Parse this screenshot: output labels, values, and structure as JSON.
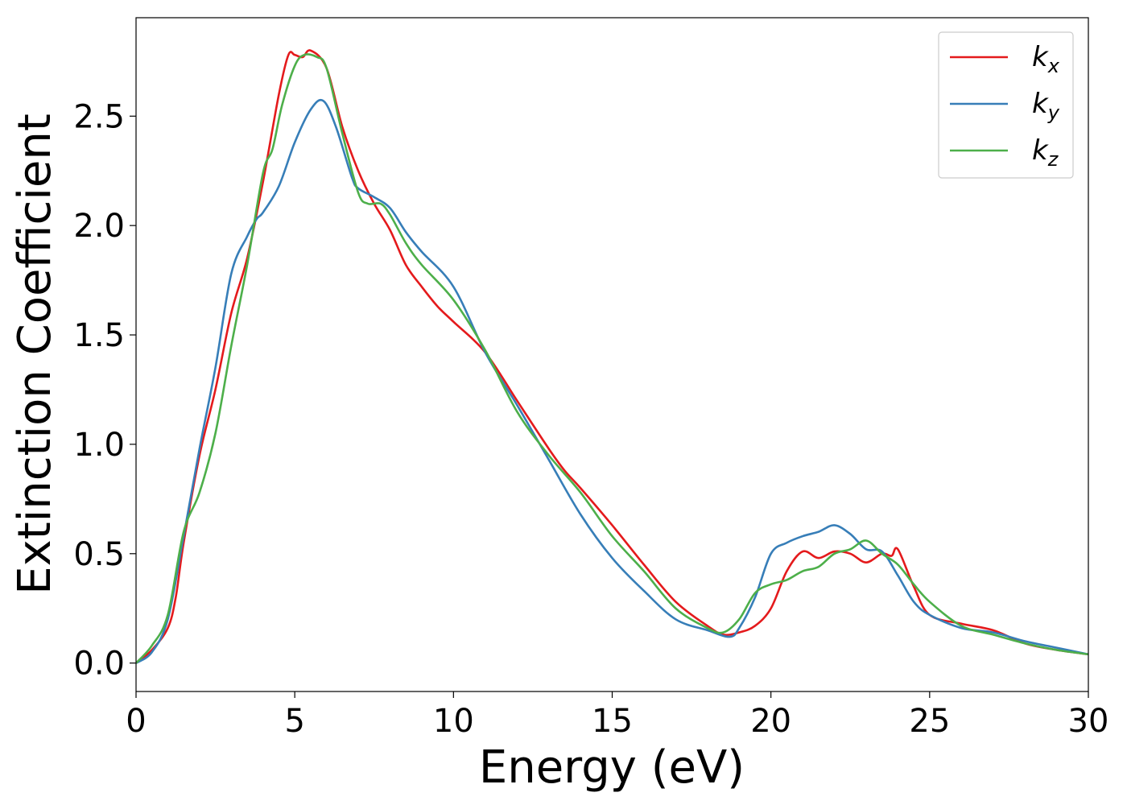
{
  "chart_data": {
    "type": "line",
    "title": "",
    "xlabel": "Energy (eV)",
    "ylabel": "Extinction Coefficient",
    "xlim": [
      0,
      30
    ],
    "ylim": [
      -0.13,
      2.95
    ],
    "xticks": [
      0,
      5,
      10,
      15,
      20,
      25,
      30
    ],
    "xtick_labels": [
      "0",
      "5",
      "10",
      "15",
      "20",
      "25",
      "30"
    ],
    "yticks": [
      0.0,
      0.5,
      1.0,
      1.5,
      2.0,
      2.5
    ],
    "ytick_labels": [
      "0.0",
      "0.5",
      "1.0",
      "1.5",
      "2.0",
      "2.5"
    ],
    "grid": false,
    "legend_position": "top-right",
    "series": [
      {
        "name": "kx",
        "label_main": "k",
        "label_sub": "x",
        "color": "#e41a1c",
        "x": [
          0,
          0.5,
          1,
          1.25,
          1.5,
          2,
          2.5,
          3,
          3.5,
          4,
          4.5,
          4.8,
          5,
          5.25,
          5.5,
          6,
          6.5,
          7,
          7.5,
          8,
          8.5,
          9,
          9.5,
          10,
          11,
          12,
          13,
          13.5,
          14,
          15,
          16,
          17,
          18,
          18.5,
          19,
          19.5,
          20,
          20.5,
          21,
          21.5,
          22,
          22.5,
          23,
          23.5,
          23.8,
          24,
          24.5,
          25,
          26,
          27,
          28,
          29,
          30
        ],
        "y": [
          0.0,
          0.06,
          0.16,
          0.3,
          0.55,
          0.95,
          1.25,
          1.6,
          1.85,
          2.2,
          2.6,
          2.78,
          2.78,
          2.77,
          2.8,
          2.72,
          2.45,
          2.25,
          2.1,
          1.98,
          1.82,
          1.72,
          1.63,
          1.56,
          1.42,
          1.2,
          0.98,
          0.88,
          0.8,
          0.63,
          0.45,
          0.28,
          0.17,
          0.13,
          0.14,
          0.17,
          0.25,
          0.42,
          0.51,
          0.48,
          0.51,
          0.5,
          0.46,
          0.5,
          0.49,
          0.52,
          0.35,
          0.22,
          0.18,
          0.15,
          0.09,
          0.06,
          0.04
        ]
      },
      {
        "name": "ky",
        "label_main": "k",
        "label_sub": "y",
        "color": "#377eb8",
        "x": [
          0,
          0.5,
          1,
          1.5,
          2,
          2.5,
          3,
          3.5,
          3.8,
          4,
          4.5,
          5,
          5.5,
          5.9,
          6.3,
          6.8,
          7,
          7.5,
          8,
          8.5,
          9,
          10,
          11,
          12,
          13,
          14,
          15,
          16,
          17,
          18,
          18.7,
          19,
          19.5,
          20,
          20.5,
          21,
          21.5,
          22,
          22.5,
          23,
          23.5,
          24,
          24.5,
          25,
          26,
          27,
          28,
          29,
          30
        ],
        "y": [
          0.0,
          0.05,
          0.2,
          0.58,
          0.98,
          1.35,
          1.78,
          1.95,
          2.03,
          2.06,
          2.18,
          2.38,
          2.53,
          2.57,
          2.45,
          2.22,
          2.17,
          2.13,
          2.08,
          1.97,
          1.88,
          1.72,
          1.42,
          1.18,
          0.93,
          0.68,
          0.48,
          0.33,
          0.2,
          0.15,
          0.12,
          0.16,
          0.3,
          0.5,
          0.55,
          0.58,
          0.6,
          0.63,
          0.59,
          0.52,
          0.51,
          0.4,
          0.28,
          0.22,
          0.16,
          0.14,
          0.1,
          0.07,
          0.04
        ]
      },
      {
        "name": "kz",
        "label_main": "k",
        "label_sub": "z",
        "color": "#4daf4a",
        "x": [
          0,
          0.5,
          1,
          1.5,
          2,
          2.5,
          3,
          3.5,
          4,
          4.3,
          4.6,
          5,
          5.3,
          5.7,
          6,
          6.5,
          7,
          7.3,
          7.7,
          8,
          8.5,
          9,
          10,
          11,
          12,
          13,
          14,
          15,
          16,
          17,
          18,
          18.5,
          19,
          19.5,
          20,
          20.5,
          21,
          21.5,
          22,
          22.5,
          23,
          23.5,
          24,
          24.5,
          25,
          26,
          27,
          28,
          29,
          30
        ],
        "y": [
          0.0,
          0.08,
          0.22,
          0.6,
          0.78,
          1.05,
          1.45,
          1.82,
          2.24,
          2.35,
          2.55,
          2.73,
          2.78,
          2.77,
          2.72,
          2.42,
          2.15,
          2.1,
          2.1,
          2.05,
          1.92,
          1.82,
          1.66,
          1.43,
          1.15,
          0.95,
          0.78,
          0.58,
          0.42,
          0.25,
          0.16,
          0.14,
          0.2,
          0.32,
          0.36,
          0.38,
          0.42,
          0.44,
          0.5,
          0.52,
          0.56,
          0.5,
          0.45,
          0.36,
          0.28,
          0.17,
          0.13,
          0.09,
          0.06,
          0.04
        ]
      }
    ]
  }
}
